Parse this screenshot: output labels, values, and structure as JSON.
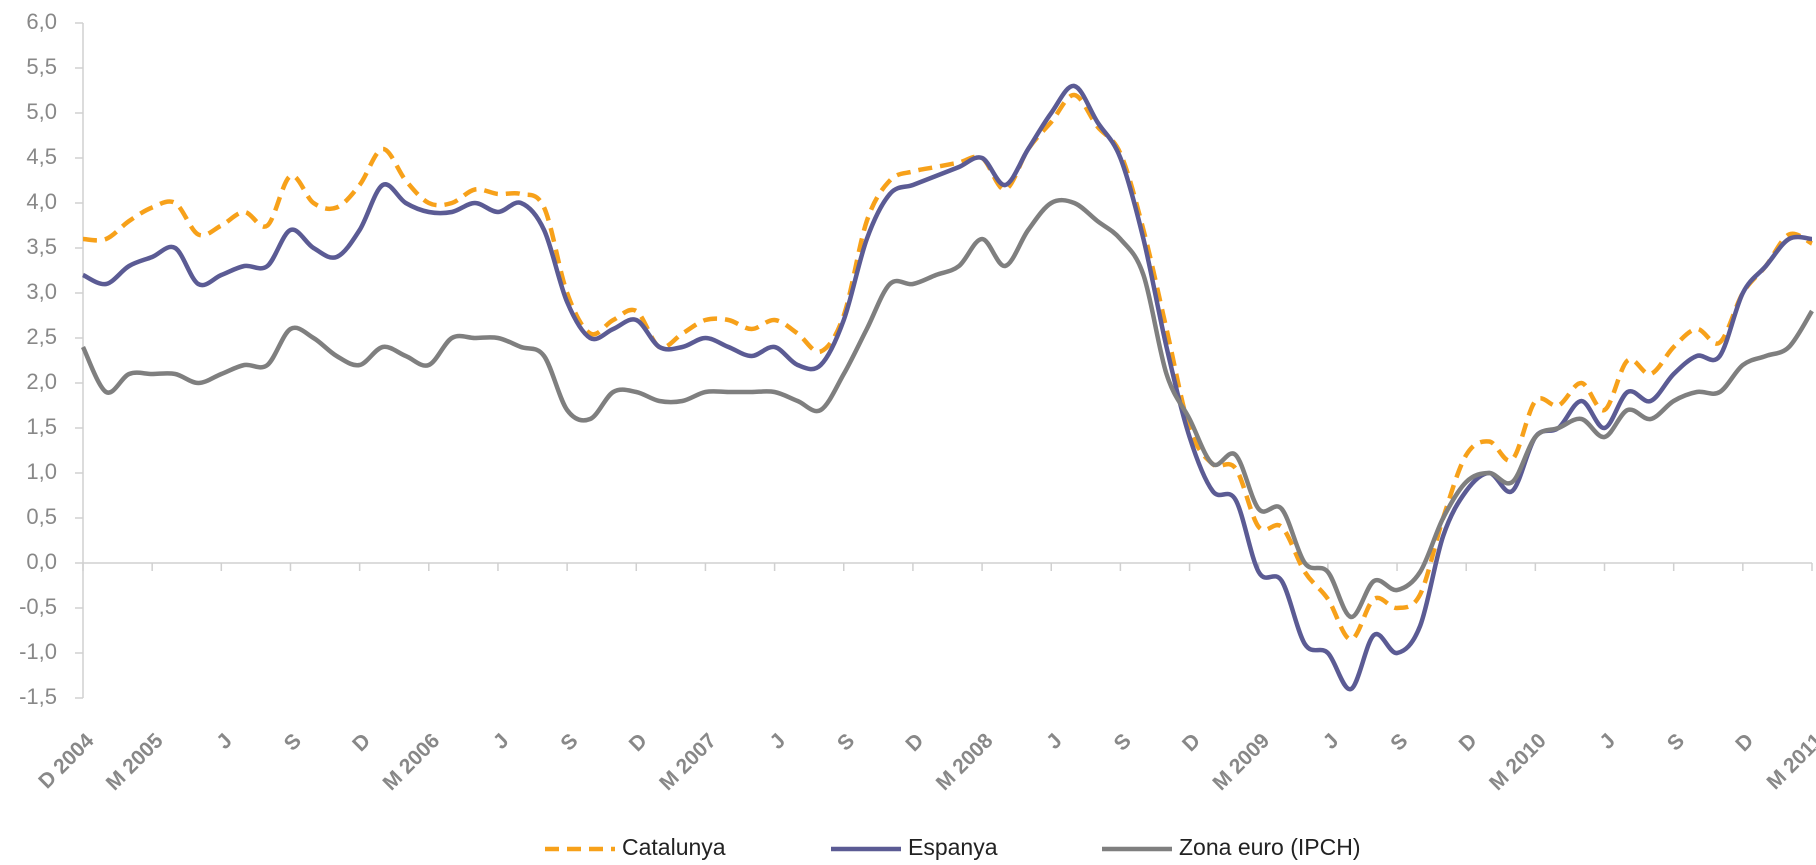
{
  "chart_data": {
    "type": "line",
    "categories": [
      "D  2004",
      null,
      null,
      "M 2005",
      null,
      null,
      "J",
      null,
      null,
      "S",
      null,
      null,
      "D",
      null,
      null,
      "M 2006",
      null,
      null,
      "J",
      null,
      null,
      "S",
      null,
      null,
      "D",
      null,
      null,
      "M 2007",
      null,
      null,
      "J",
      null,
      null,
      "S",
      null,
      null,
      "D",
      null,
      null,
      "M 2008",
      null,
      null,
      "J",
      null,
      null,
      "S",
      null,
      null,
      "D",
      null,
      null,
      "M 2009",
      null,
      null,
      "J",
      null,
      null,
      "S",
      null,
      null,
      "D",
      null,
      null,
      "M 2010",
      null,
      null,
      "J",
      null,
      null,
      "S",
      null,
      null,
      "D",
      null,
      null,
      "M 2011"
    ],
    "series": [
      {
        "name": "Catalunya",
        "color": "#f7a11a",
        "dashed": true,
        "values": [
          3.6,
          3.6,
          3.8,
          3.95,
          4.0,
          3.65,
          3.75,
          3.9,
          3.75,
          4.3,
          4.0,
          3.95,
          4.2,
          4.6,
          4.25,
          4.0,
          4.0,
          4.15,
          4.1,
          4.1,
          3.95,
          3.0,
          2.55,
          2.7,
          2.8,
          2.4,
          2.55,
          2.7,
          2.7,
          2.6,
          2.7,
          2.55,
          2.35,
          2.75,
          3.8,
          4.25,
          4.35,
          4.4,
          4.45,
          4.5,
          4.15,
          4.6,
          4.9,
          5.2,
          4.85,
          4.55,
          3.7,
          2.6,
          1.5,
          1.1,
          1.05,
          0.4,
          0.4,
          -0.1,
          -0.4,
          -0.85,
          -0.4,
          -0.5,
          -0.35,
          0.5,
          1.2,
          1.35,
          1.15,
          1.8,
          1.75,
          2.0,
          1.7,
          2.25,
          2.1,
          2.4,
          2.6,
          2.45,
          3.0,
          3.3,
          3.65,
          3.55
        ]
      },
      {
        "name": "Espanya",
        "color": "#5b5b94",
        "dashed": false,
        "values": [
          3.2,
          3.1,
          3.3,
          3.4,
          3.5,
          3.1,
          3.2,
          3.3,
          3.3,
          3.7,
          3.5,
          3.4,
          3.7,
          4.2,
          4.0,
          3.9,
          3.9,
          4.0,
          3.9,
          4.0,
          3.7,
          2.9,
          2.5,
          2.6,
          2.7,
          2.4,
          2.4,
          2.5,
          2.4,
          2.3,
          2.4,
          2.2,
          2.2,
          2.7,
          3.6,
          4.1,
          4.2,
          4.3,
          4.4,
          4.5,
          4.2,
          4.6,
          5.0,
          5.3,
          4.9,
          4.5,
          3.6,
          2.4,
          1.4,
          0.8,
          0.7,
          -0.1,
          -0.2,
          -0.9,
          -1.0,
          -1.4,
          -0.8,
          -1.0,
          -0.7,
          0.3,
          0.8,
          1.0,
          0.8,
          1.4,
          1.5,
          1.8,
          1.5,
          1.9,
          1.8,
          2.1,
          2.3,
          2.3,
          3.0,
          3.3,
          3.6,
          3.6
        ]
      },
      {
        "name": "Zona euro (IPCH)",
        "color": "#7f7f7f",
        "dashed": false,
        "values": [
          2.4,
          1.9,
          2.1,
          2.1,
          2.1,
          2.0,
          2.1,
          2.2,
          2.2,
          2.6,
          2.5,
          2.3,
          2.2,
          2.4,
          2.3,
          2.2,
          2.5,
          2.5,
          2.5,
          2.4,
          2.3,
          1.7,
          1.6,
          1.9,
          1.9,
          1.8,
          1.8,
          1.9,
          1.9,
          1.9,
          1.9,
          1.8,
          1.7,
          2.1,
          2.6,
          3.1,
          3.1,
          3.2,
          3.3,
          3.6,
          3.3,
          3.7,
          4.0,
          4.0,
          3.8,
          3.6,
          3.2,
          2.1,
          1.6,
          1.1,
          1.2,
          0.6,
          0.6,
          0.0,
          -0.1,
          -0.6,
          -0.2,
          -0.3,
          -0.1,
          0.5,
          0.9,
          1.0,
          0.9,
          1.4,
          1.5,
          1.6,
          1.4,
          1.7,
          1.6,
          1.8,
          1.9,
          1.9,
          2.2,
          2.3,
          2.4,
          2.8
        ]
      }
    ],
    "ylim": [
      -1.5,
      6.0
    ],
    "yticks": [
      {
        "value": -1.5,
        "label": "-1,5"
      },
      {
        "value": -1.0,
        "label": "-1,0"
      },
      {
        "value": -0.5,
        "label": "-0,5"
      },
      {
        "value": 0.0,
        "label": "0,0"
      },
      {
        "value": 0.5,
        "label": "0,5"
      },
      {
        "value": 1.0,
        "label": "1,0"
      },
      {
        "value": 1.5,
        "label": "1,5"
      },
      {
        "value": 2.0,
        "label": "2,0"
      },
      {
        "value": 2.5,
        "label": "2,5"
      },
      {
        "value": 3.0,
        "label": "3,0"
      },
      {
        "value": 3.5,
        "label": "3,5"
      },
      {
        "value": 4.0,
        "label": "4,0"
      },
      {
        "value": 4.5,
        "label": "4,5"
      },
      {
        "value": 5.0,
        "label": "5,0"
      },
      {
        "value": 5.5,
        "label": "5,5"
      },
      {
        "value": 6.0,
        "label": "6,0"
      }
    ],
    "grid": false,
    "legend": "bottom"
  }
}
